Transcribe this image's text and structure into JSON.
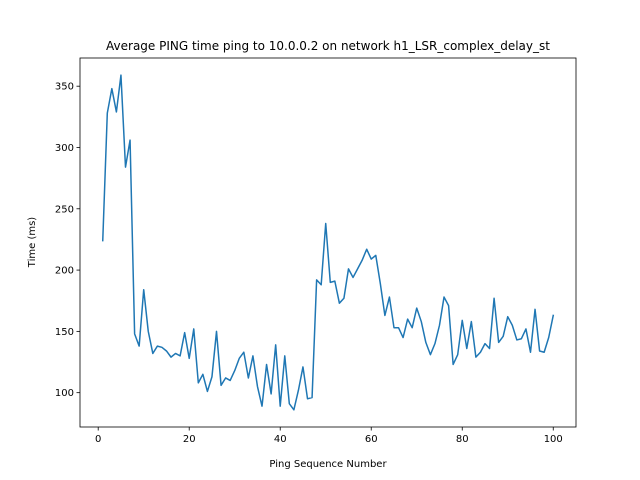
{
  "chart_data": {
    "type": "line",
    "title": "Average PING time ping to 10.0.0.2 on network h1_LSR_complex_delay_st",
    "xlabel": "Ping Sequence Number",
    "ylabel": "Time (ms)",
    "xlim": [
      -4,
      105
    ],
    "ylim": [
      72,
      373
    ],
    "xticks": [
      0,
      20,
      40,
      60,
      80,
      100
    ],
    "yticks": [
      100,
      150,
      200,
      250,
      300,
      350
    ],
    "grid": false,
    "line_color": "#1f77b4",
    "series": [
      {
        "x": [
          1,
          2,
          3,
          4,
          5,
          6,
          7,
          8,
          9,
          10,
          11,
          12,
          13,
          14,
          15,
          16,
          17,
          18,
          19,
          20,
          21,
          22,
          23,
          24,
          25,
          26,
          27,
          28,
          29,
          30,
          31,
          32,
          33,
          34,
          35,
          36,
          37,
          38,
          39,
          40,
          41,
          42,
          43,
          44,
          45,
          46,
          47,
          48,
          49,
          50,
          51,
          52,
          53,
          54,
          55,
          56,
          57,
          58,
          59,
          60,
          61,
          62,
          63,
          64,
          65,
          66,
          67,
          68,
          69,
          70,
          71,
          72,
          73,
          74,
          75,
          76,
          77,
          78,
          79,
          80,
          81,
          82,
          83,
          84,
          85,
          86,
          87,
          88,
          89,
          90,
          91,
          92,
          93,
          94,
          95,
          96,
          97,
          98,
          99,
          100
        ],
        "values": [
          224,
          328,
          348,
          329,
          359,
          284,
          306,
          148,
          138,
          184,
          150,
          132,
          138,
          137,
          134,
          129,
          132,
          130,
          149,
          128,
          152,
          108,
          115,
          101,
          113,
          150,
          106,
          112,
          110,
          118,
          128,
          133,
          112,
          130,
          105,
          89,
          123,
          99,
          139,
          89,
          130,
          91,
          86,
          102,
          121,
          95,
          96,
          192,
          188,
          238,
          190,
          191,
          173,
          177,
          201,
          194,
          201,
          208,
          217,
          209,
          212,
          189,
          163,
          178,
          153,
          153,
          145,
          160,
          153,
          169,
          158,
          141,
          131,
          140,
          155,
          178,
          171,
          123,
          131,
          159,
          136,
          158,
          129,
          133,
          140,
          136,
          177,
          141,
          146,
          162,
          155,
          143,
          144,
          152,
          133,
          168,
          134,
          133,
          145,
          163
        ]
      }
    ]
  }
}
